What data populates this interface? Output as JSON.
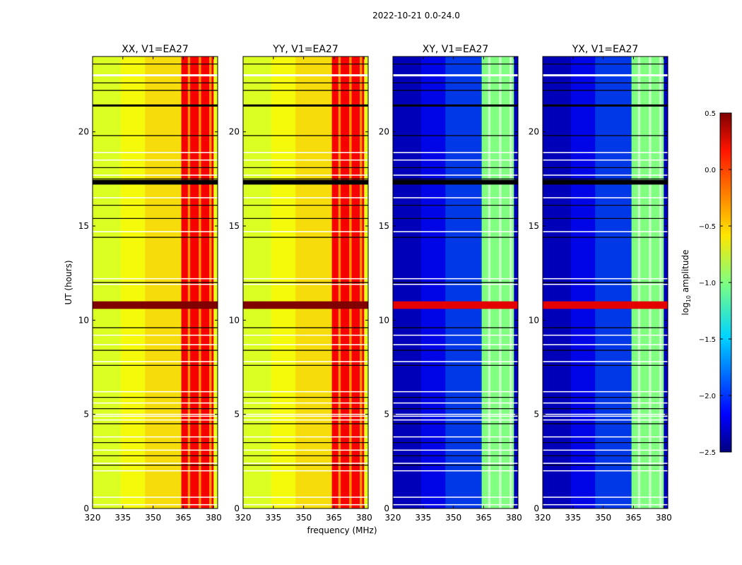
{
  "suptitle": "2022-10-21 0.0-24.0",
  "xlabel": "frequency (MHz)",
  "ylabel": "UT (hours)",
  "colorbar": {
    "label_main": "log",
    "label_sub": "10",
    "label_tail": " amplitude",
    "ticks": [
      "0.5",
      "0.0",
      "−0.5",
      "−1.0",
      "−1.5",
      "−2.0",
      "−2.5"
    ],
    "tick_values": [
      0.5,
      0.0,
      -0.5,
      -1.0,
      -1.5,
      -2.0,
      -2.5
    ],
    "range": [
      -2.5,
      0.5
    ],
    "colormap": "jet"
  },
  "chart_data": [
    {
      "type": "heatmap",
      "title": "XX, V1=EA27",
      "xlabel": "",
      "ylabel": "UT (hours)",
      "xlim": [
        320,
        382
      ],
      "ylim": [
        0,
        24
      ],
      "xticks": [
        320,
        335,
        350,
        365,
        380
      ],
      "xtick_labels": [
        "320",
        "335",
        "350",
        "365",
        "380"
      ],
      "yticks": [
        0,
        5,
        10,
        15,
        20
      ],
      "ytick_labels": [
        "0",
        "5",
        "10",
        "15",
        "20"
      ],
      "baseline_log_amplitude": -0.7,
      "rfi_band_mhz": [
        364,
        380
      ],
      "rfi_band_log_amplitude": 0.15,
      "strong_rfi_ut": [
        10.6,
        11.0
      ],
      "strong_rfi_log_amplitude": 0.5
    },
    {
      "type": "heatmap",
      "title": "YY, V1=EA27",
      "xlabel": "frequency (MHz)",
      "ylabel": "",
      "xlim": [
        320,
        382
      ],
      "ylim": [
        0,
        24
      ],
      "xticks": [
        320,
        335,
        350,
        365,
        380
      ],
      "xtick_labels": [
        "320",
        "335",
        "350",
        "365",
        "380"
      ],
      "yticks": [
        0,
        5,
        10,
        15,
        20
      ],
      "ytick_labels": [
        "0",
        "5",
        "10",
        "15",
        "20"
      ],
      "baseline_log_amplitude": -0.7,
      "rfi_band_mhz": [
        364,
        380
      ],
      "rfi_band_log_amplitude": 0.15,
      "strong_rfi_ut": [
        10.6,
        11.0
      ],
      "strong_rfi_log_amplitude": 0.5
    },
    {
      "type": "heatmap",
      "title": "XY, V1=EA27",
      "xlabel": "",
      "ylabel": "",
      "xlim": [
        320,
        382
      ],
      "ylim": [
        0,
        24
      ],
      "xticks": [
        320,
        335,
        350,
        365,
        380
      ],
      "xtick_labels": [
        "320",
        "335",
        "350",
        "365",
        "380"
      ],
      "yticks": [
        0,
        5,
        10,
        15,
        20
      ],
      "ytick_labels": [
        "0",
        "5",
        "10",
        "15",
        "20"
      ],
      "baseline_log_amplitude": -2.3,
      "rfi_band_mhz": [
        364,
        380
      ],
      "rfi_band_log_amplitude": -1.0,
      "strong_rfi_ut": [
        10.6,
        11.0
      ],
      "strong_rfi_log_amplitude": 0.2
    },
    {
      "type": "heatmap",
      "title": "YX, V1=EA27",
      "xlabel": "",
      "ylabel": "",
      "xlim": [
        320,
        382
      ],
      "ylim": [
        0,
        24
      ],
      "xticks": [
        320,
        335,
        350,
        365,
        380
      ],
      "xtick_labels": [
        "320",
        "335",
        "350",
        "365",
        "380"
      ],
      "yticks": [
        0,
        5,
        10,
        15,
        20
      ],
      "ytick_labels": [
        "0",
        "5",
        "10",
        "15",
        "20"
      ],
      "baseline_log_amplitude": -2.3,
      "rfi_band_mhz": [
        364,
        380
      ],
      "rfi_band_log_amplitude": -1.0,
      "strong_rfi_ut": [
        10.6,
        11.0
      ],
      "strong_rfi_log_amplitude": 0.2
    }
  ]
}
